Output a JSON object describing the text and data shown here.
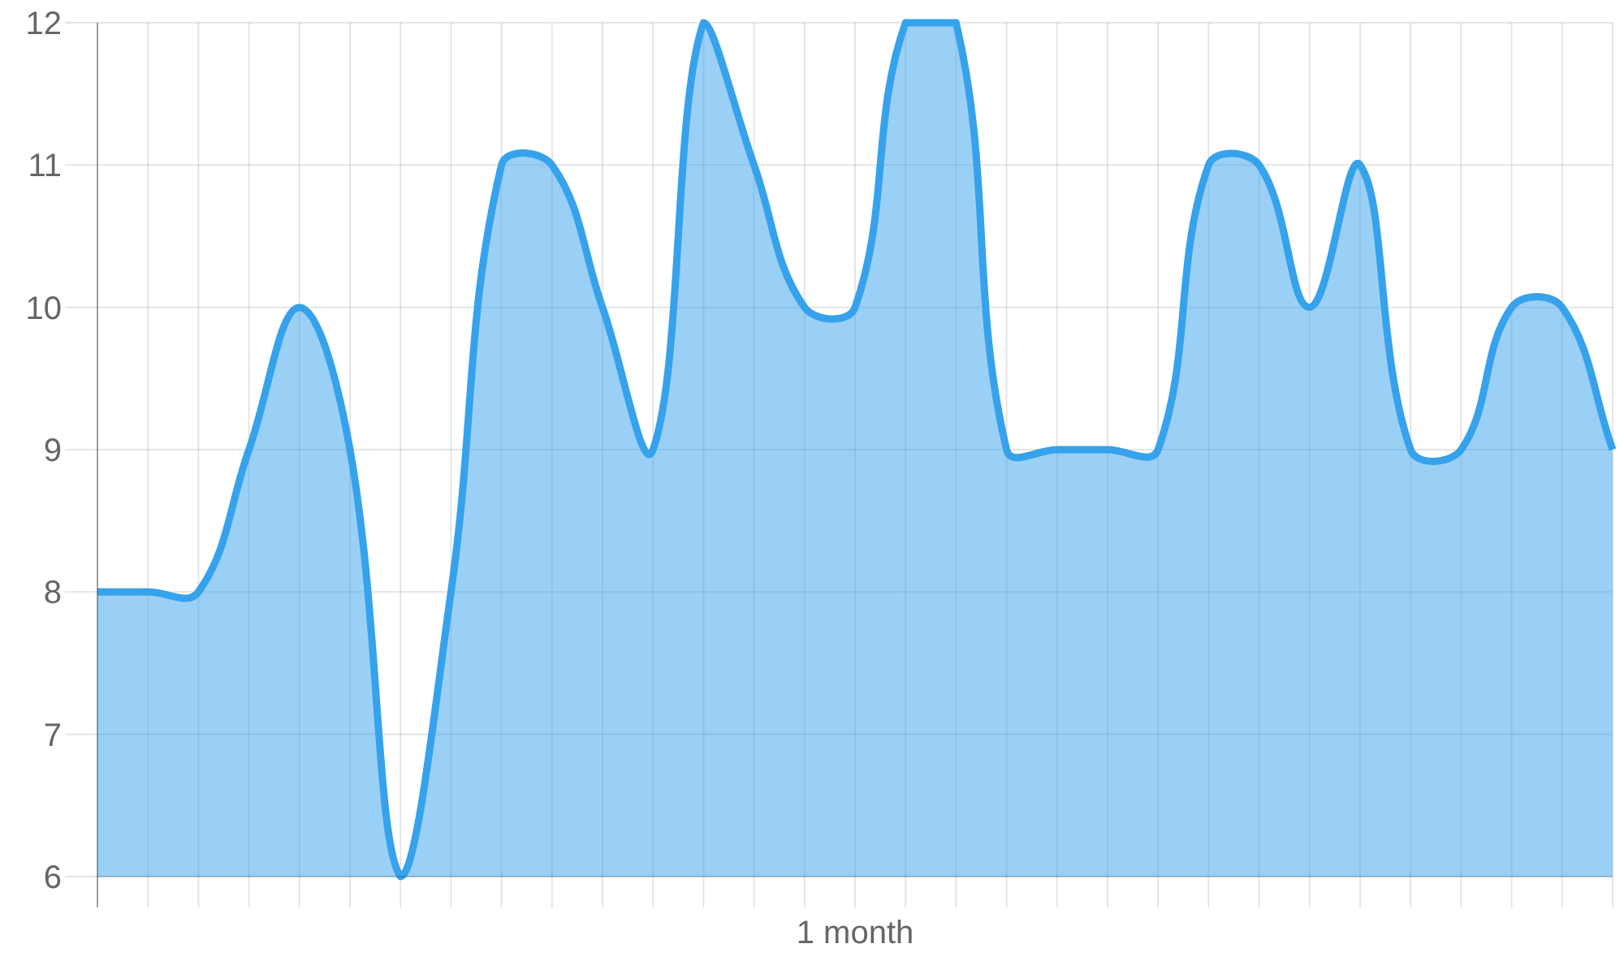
{
  "chart_data": {
    "type": "area",
    "xlabel": "1 month",
    "categories": [
      null,
      null,
      null,
      null,
      null,
      null,
      null,
      null,
      null,
      null,
      null,
      null,
      null,
      null,
      null,
      null,
      null,
      null,
      null,
      null,
      null,
      null,
      null,
      null,
      null,
      null,
      null,
      null,
      null,
      null,
      null
    ],
    "values": [
      8,
      8,
      8,
      9,
      10,
      9,
      6,
      8,
      11,
      11,
      10,
      9,
      12,
      11,
      10,
      10,
      12,
      12,
      9,
      9,
      9,
      9,
      11,
      11,
      10,
      11,
      9,
      9,
      10,
      10,
      9
    ],
    "color": "#36a2eb",
    "ylim": [
      6,
      12
    ],
    "yticks": [
      6,
      7,
      8,
      9,
      10,
      11,
      12
    ],
    "grid": true,
    "tick_labels": "y"
  }
}
